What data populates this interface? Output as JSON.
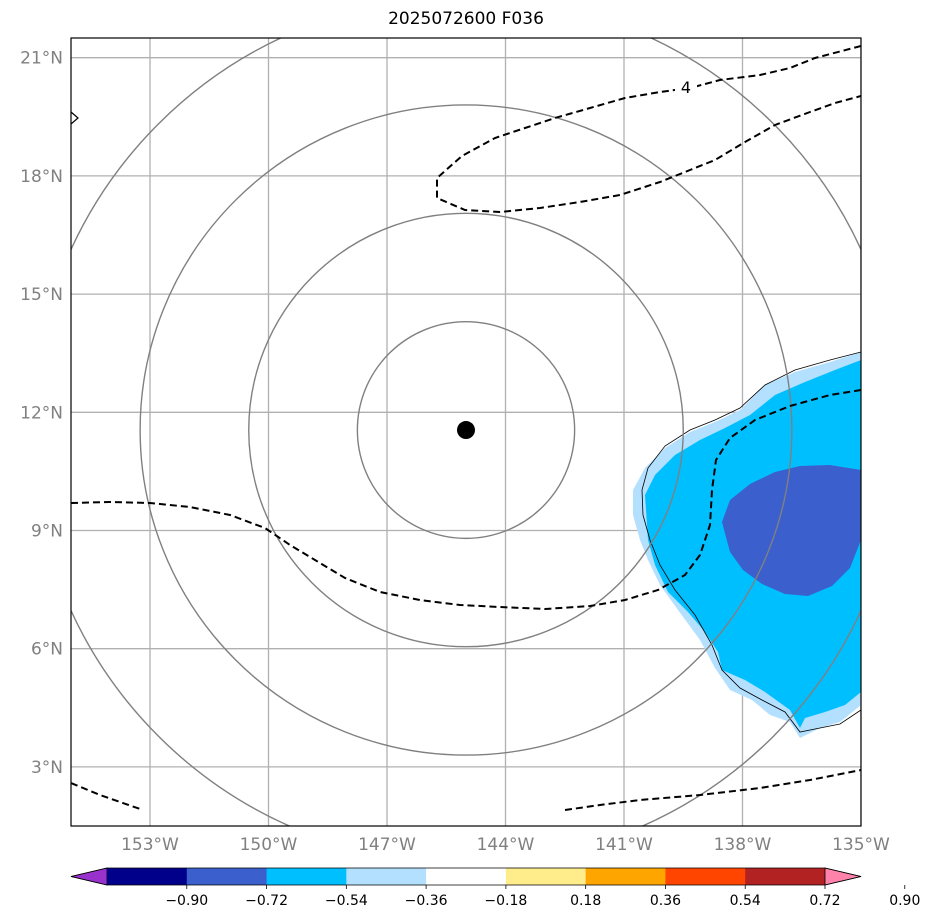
{
  "title": "2025072600 F036",
  "map": {
    "lon_range": [
      -155,
      -135
    ],
    "lat_range": [
      1.5,
      21.5
    ],
    "lat_ticks": [
      {
        "value": 21,
        "label": "21°N"
      },
      {
        "value": 18,
        "label": "18°N"
      },
      {
        "value": 15,
        "label": "15°N"
      },
      {
        "value": 12,
        "label": "12°N"
      },
      {
        "value": 9,
        "label": "9°N"
      },
      {
        "value": 6,
        "label": "6°N"
      },
      {
        "value": 3,
        "label": "3°N"
      }
    ],
    "lon_ticks": [
      {
        "value": -153,
        "label": "153°W"
      },
      {
        "value": -150,
        "label": "150°W"
      },
      {
        "value": -147,
        "label": "147°W"
      },
      {
        "value": -144,
        "label": "144°W"
      },
      {
        "value": -141,
        "label": "141°W"
      },
      {
        "value": -138,
        "label": "138°W"
      },
      {
        "value": -135,
        "label": "135°W"
      }
    ],
    "center": {
      "lon": -145,
      "lat": 11.55
    },
    "range_rings_deg": [
      2.75,
      5.5,
      8.25,
      11.0
    ],
    "dashed_contour_label": "4",
    "grid": true,
    "colors": {
      "ring": "#808080",
      "grid": "#b0b0b0",
      "fill_light": "#b3e0ff",
      "fill_mid": "#00bfff",
      "fill_dark": "#3b5fcc"
    }
  },
  "colorbar": {
    "ticks": [
      "−0.90",
      "−0.72",
      "−0.54",
      "−0.36",
      "−0.18",
      "0.18",
      "0.36",
      "0.54",
      "0.72",
      "0.90"
    ],
    "colors": [
      "#9932cc",
      "#00008b",
      "#3b5fcc",
      "#00bfff",
      "#b3e0ff",
      "#ffffff",
      "#ffec8b",
      "#ffa500",
      "#ff4500",
      "#b22222",
      "#ff82ab"
    ]
  }
}
